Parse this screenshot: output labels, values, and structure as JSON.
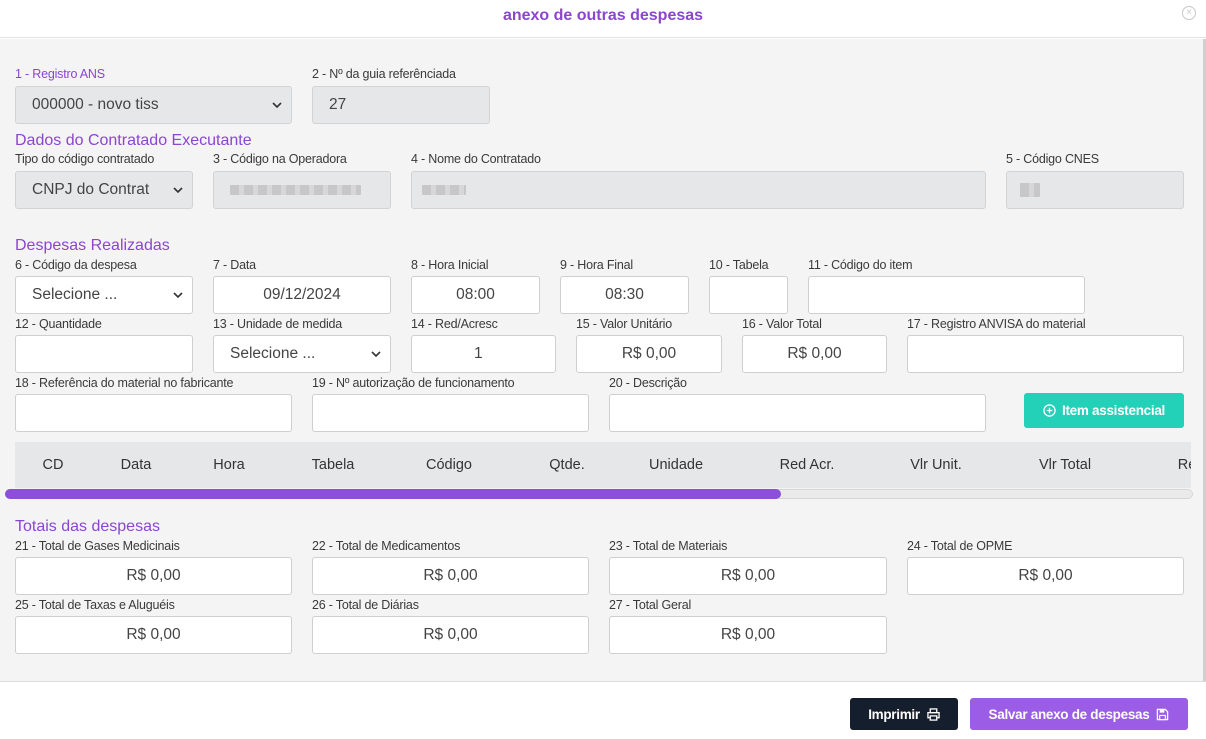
{
  "header": {
    "title": "anexo de outras despesas",
    "close_glyph": "×"
  },
  "fields": {
    "registro_ans": {
      "label": "1 - Registro ANS",
      "value": "000000 - novo tiss"
    },
    "guia": {
      "label": "2 - Nº da guia referênciada",
      "value": "27"
    }
  },
  "contratado": {
    "title": "Dados do Contratado Executante",
    "tipo_label": "Tipo do código contratado",
    "tipo_value": "CNPJ do Contrat",
    "codigo_label": "3 - Código na Operadora",
    "nome_label": "4 - Nome do Contratado",
    "cnes_label": "5 - Código CNES"
  },
  "despesas": {
    "title": "Despesas Realizadas",
    "codigo_label": "6 - Código da despesa",
    "codigo_value": "Selecione ...",
    "data_label": "7 - Data",
    "data_value": "09/12/2024",
    "hora_ini_label": "8 - Hora Inicial",
    "hora_ini_value": "08:00",
    "hora_fim_label": "9 - Hora Final",
    "hora_fim_value": "08:30",
    "tabela_label": "10 - Tabela",
    "item_label": "11 - Código do item",
    "qtd_label": "12 - Quantidade",
    "unidade_label": "13 - Unidade de medida",
    "unidade_value": "Selecione ...",
    "red_label": "14 - Red/Acresc",
    "red_value": "1",
    "vunit_label": "15 - Valor Unitário",
    "vunit_value": "R$ 0,00",
    "vtotal_label": "16 - Valor Total",
    "vtotal_value": "R$ 0,00",
    "anvisa_label": "17 - Registro ANVISA do material",
    "ref_label": "18 - Referência do material no fabricante",
    "aut_label": "19 - Nº autorização de funcionamento",
    "desc_label": "20 - Descrição",
    "add_button": "Item assistencial"
  },
  "table": {
    "columns": [
      "CD",
      "Data",
      "Hora",
      "Tabela",
      "Código",
      "Qtde.",
      "Unidade",
      "Red Acr.",
      "Vlr Unit.",
      "Vlr Total",
      "Re"
    ],
    "scroll_fraction": 0.65
  },
  "totais": {
    "title": "Totais das despesas",
    "items": [
      {
        "label": "21 - Total de Gases Medicinais",
        "value": "R$ 0,00"
      },
      {
        "label": "22 - Total de Medicamentos",
        "value": "R$ 0,00"
      },
      {
        "label": "23 - Total de Materiais",
        "value": "R$ 0,00"
      },
      {
        "label": "24 - Total de OPME",
        "value": "R$ 0,00"
      },
      {
        "label": "25 - Total de Taxas e Aluguéis",
        "value": "R$ 0,00"
      },
      {
        "label": "26 - Total de Diárias",
        "value": "R$ 0,00"
      },
      {
        "label": "27 - Total Geral",
        "value": "R$ 0,00"
      }
    ]
  },
  "footer": {
    "print_button": "Imprimir",
    "save_button": "Salvar anexo de despesas"
  },
  "colors": {
    "accent": "#8b45d1",
    "teal": "#22d1b8",
    "dark": "#151e2c",
    "save": "#9b5de5"
  }
}
